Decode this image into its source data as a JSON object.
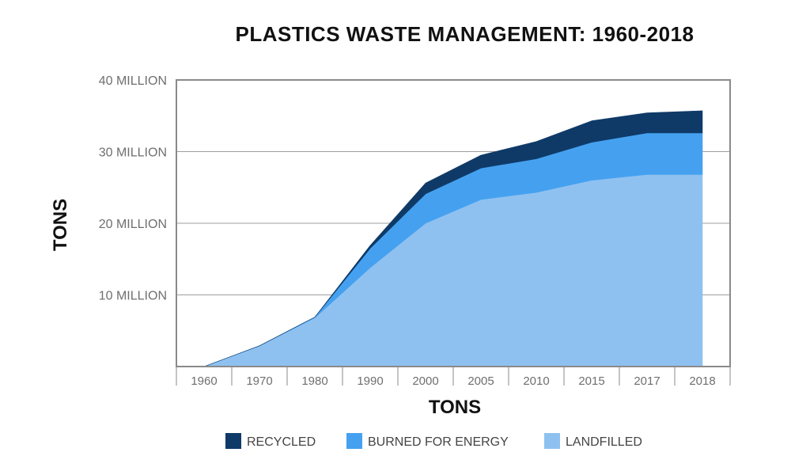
{
  "chart_data": {
    "type": "area",
    "title": "PLASTICS WASTE MANAGEMENT: 1960-2018",
    "xlabel": "TONS",
    "ylabel": "TONS",
    "categories": [
      "1960",
      "1970",
      "1980",
      "1990",
      "2000",
      "2005",
      "2010",
      "2015",
      "2017",
      "2018"
    ],
    "y_ticks": [
      {
        "value": 10000000,
        "label": "10 MILLION"
      },
      {
        "value": 20000000,
        "label": "20 MILLION"
      },
      {
        "value": 30000000,
        "label": "30 MILLION"
      },
      {
        "value": 40000000,
        "label": "40 MILLION"
      }
    ],
    "ylim": [
      0,
      40000000
    ],
    "stacked": true,
    "grid": true,
    "legend_position": "bottom",
    "series": [
      {
        "name": "LANDFILLED",
        "color": "#8fc1f0",
        "values": [
          0,
          2900000,
          6800000,
          13800000,
          20000000,
          23300000,
          24300000,
          26000000,
          26800000,
          26800000
        ]
      },
      {
        "name": "BURNED FOR ENERGY",
        "color": "#45a1f0",
        "values": [
          0,
          0,
          100000,
          2700000,
          4100000,
          4400000,
          4700000,
          5300000,
          5800000,
          5800000
        ]
      },
      {
        "name": "RECYCLED",
        "color": "#0f3a68",
        "values": [
          0,
          0,
          0,
          400000,
          1500000,
          1800000,
          2400000,
          3000000,
          2800000,
          3100000
        ]
      }
    ],
    "legend": [
      {
        "name": "RECYCLED",
        "color": "#0f3a68"
      },
      {
        "name": "BURNED FOR ENERGY",
        "color": "#45a1f0"
      },
      {
        "name": "LANDFILLED",
        "color": "#8fc1f0"
      }
    ],
    "colors": {
      "grid": "#9e9e9e",
      "frame": "#8a8a8a",
      "ticks": "#6f6f6f"
    }
  }
}
